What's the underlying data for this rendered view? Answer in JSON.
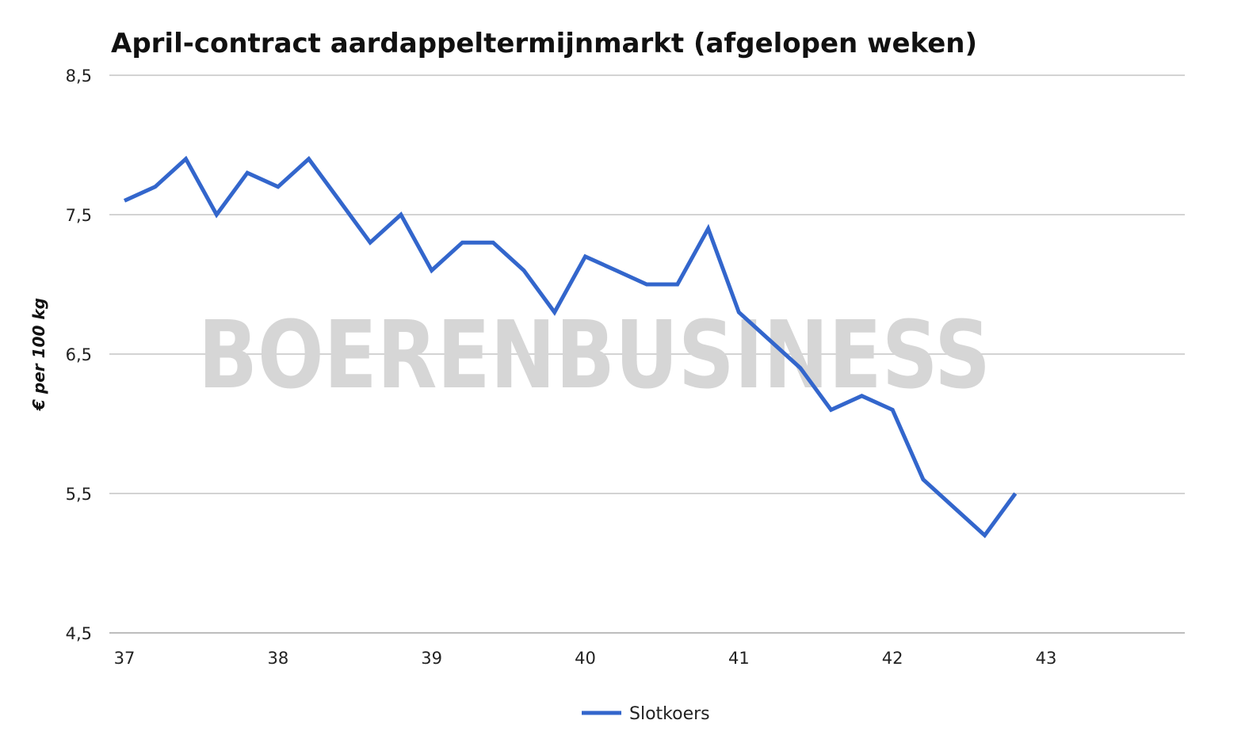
{
  "watermark": "BOERENBUSINESS",
  "chart_data": {
    "type": "line",
    "title": "April-contract aardappeltermijnmarkt (afgelopen weken)",
    "xlabel": "",
    "ylabel": "€ per 100 kg",
    "xlim": [
      37,
      43.9
    ],
    "ylim": [
      4.5,
      8.5
    ],
    "xticks": [
      37,
      38,
      39,
      40,
      41,
      42,
      43
    ],
    "yticks": [
      4.5,
      5.5,
      6.5,
      7.5,
      8.5
    ],
    "ytick_labels": [
      "4,5",
      "5,5",
      "6,5",
      "7,5",
      "8,5"
    ],
    "grid": true,
    "legend_position": "bottom",
    "series": [
      {
        "name": "Slotkoers",
        "color": "#3366cc",
        "x": [
          37.0,
          37.2,
          37.4,
          37.6,
          37.8,
          38.0,
          38.2,
          38.4,
          38.6,
          38.8,
          39.0,
          39.2,
          39.4,
          39.6,
          39.8,
          40.0,
          40.2,
          40.4,
          40.6,
          40.8,
          41.0,
          41.2,
          41.4,
          41.6,
          41.8,
          42.0,
          42.2,
          42.4,
          42.6,
          42.8
        ],
        "values": [
          7.6,
          7.7,
          7.9,
          7.5,
          7.8,
          7.7,
          7.9,
          7.6,
          7.3,
          7.5,
          7.1,
          7.3,
          7.3,
          7.1,
          6.8,
          7.2,
          7.1,
          7.0,
          7.0,
          7.4,
          6.8,
          6.6,
          6.4,
          6.1,
          6.2,
          6.1,
          5.6,
          5.4,
          5.2,
          5.5
        ]
      }
    ]
  }
}
